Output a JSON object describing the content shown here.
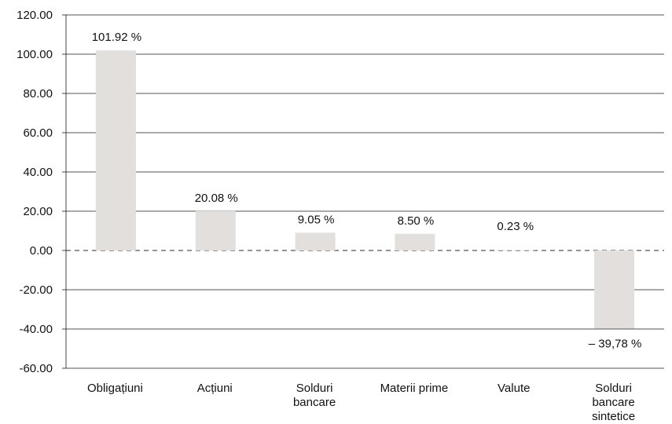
{
  "chart_data": {
    "type": "bar",
    "categories": [
      [
        "Obligațiuni"
      ],
      [
        "Acțiuni"
      ],
      [
        "Solduri",
        "bancare"
      ],
      [
        "Materii prime"
      ],
      [
        "Valute"
      ],
      [
        "Solduri",
        "bancare",
        "sintetice"
      ]
    ],
    "values": [
      101.92,
      20.08,
      9.05,
      8.5,
      0.23,
      -39.78
    ],
    "data_labels": [
      "101.92 %",
      "20.08 %",
      "9.05 %",
      "8.50 %",
      "0.23 %",
      "– 39,78 %"
    ],
    "ylim": [
      -60,
      120
    ],
    "yticks": [
      120,
      100,
      80,
      60,
      40,
      20,
      0,
      -20,
      -40,
      -60
    ],
    "ytick_labels": [
      "120.00",
      "100.00",
      "80.00",
      "60.00",
      "40.00",
      "20.00",
      "0.00",
      "-20.00",
      "-40.00",
      "-60.00"
    ],
    "grid": true,
    "zero_line": "dashed",
    "bar_color": "#e2dfdd",
    "grid_color": "#1a1a1a",
    "title": "",
    "xlabel": "",
    "ylabel": ""
  }
}
